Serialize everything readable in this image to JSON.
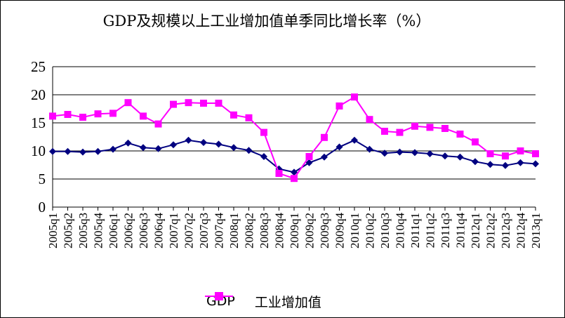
{
  "chart_data": {
    "type": "line",
    "title": "GDP及规模以上工业增加值单季同比增长率（%）",
    "xlabel": "",
    "ylabel": "",
    "ylim": [
      0,
      25
    ],
    "yticks": [
      "0",
      "5",
      "10",
      "15",
      "20",
      "25"
    ],
    "grid": "horizontal",
    "legend_position": "bottom",
    "categories": [
      "2005q1",
      "2005q2",
      "2005q3",
      "2005q4",
      "2006q1",
      "2006q2",
      "2006q3",
      "2006q4",
      "2007q1",
      "2007q2",
      "2007q3",
      "2007q4",
      "2008q1",
      "2008q2",
      "2008q3",
      "2008q4",
      "2009q1",
      "2009q2",
      "2009q3",
      "2009q4",
      "2010q1",
      "2010q2",
      "2010q3",
      "2010q4",
      "2011q1",
      "2011q2",
      "2011q3",
      "2011q4",
      "2012q1",
      "2012q2",
      "2012q3",
      "2012q4",
      "2013q1"
    ],
    "series": [
      {
        "name": "GDP",
        "color": "#000080",
        "marker": "diamond",
        "values": [
          9.9,
          9.9,
          9.8,
          9.9,
          10.3,
          11.4,
          10.6,
          10.4,
          11.1,
          11.9,
          11.5,
          11.2,
          10.6,
          10.1,
          9.0,
          6.8,
          6.2,
          7.9,
          8.9,
          10.7,
          11.9,
          10.3,
          9.6,
          9.8,
          9.7,
          9.5,
          9.1,
          8.9,
          8.1,
          7.6,
          7.4,
          7.9,
          7.7
        ]
      },
      {
        "name": "工业增加值",
        "color": "#ff00ff",
        "marker": "square",
        "values": [
          16.2,
          16.5,
          16.0,
          16.6,
          16.7,
          18.6,
          16.2,
          14.8,
          18.3,
          18.6,
          18.5,
          18.5,
          16.4,
          15.9,
          13.3,
          6.0,
          5.1,
          9.0,
          12.4,
          18.0,
          19.6,
          15.6,
          13.5,
          13.3,
          14.4,
          14.2,
          14.0,
          13.0,
          11.6,
          9.5,
          9.1,
          10.0,
          9.5
        ]
      }
    ]
  }
}
